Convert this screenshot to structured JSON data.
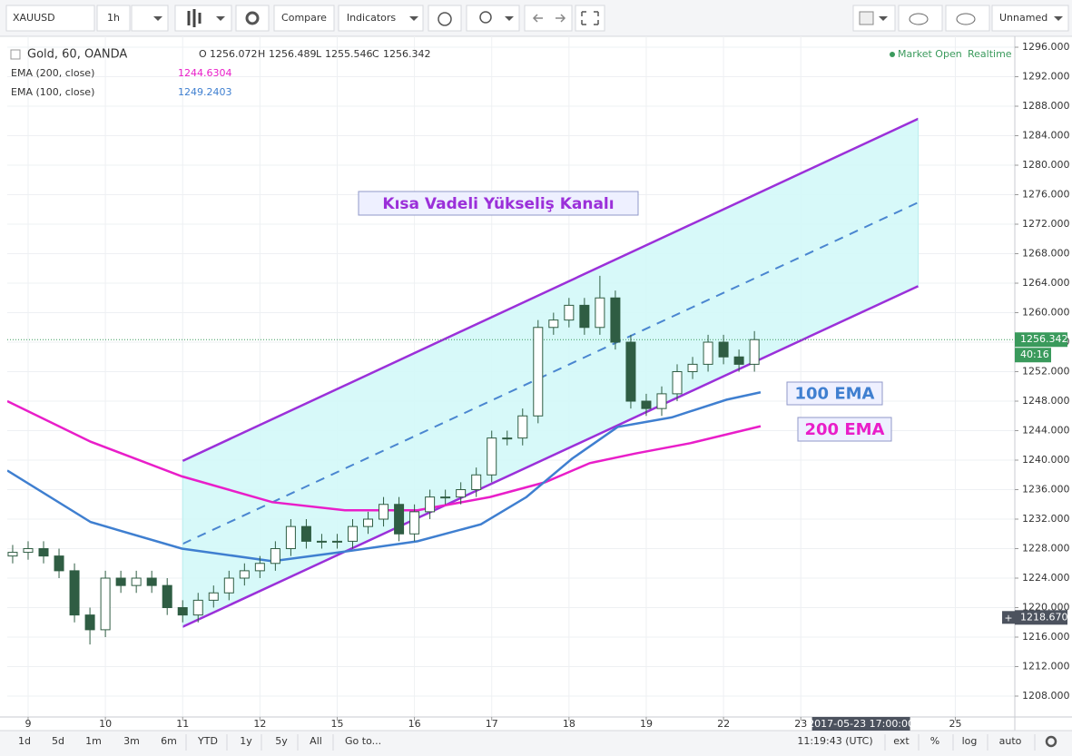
{
  "toolbar": {
    "symbol": "XAUUSD",
    "interval": "1h",
    "compare": "Compare",
    "indicators": "Indicators",
    "layout": "Unnamed"
  },
  "legend": {
    "title": "Gold, 60, OANDA",
    "o_label": "O",
    "open": 1256.072,
    "h_label": "H",
    "high": 1256.489,
    "l_label": "L",
    "low": 1255.546,
    "c_label": "C",
    "close": 1256.342,
    "status": "Market Open",
    "feed": "Realtime"
  },
  "bottom_bar": {
    "ranges": [
      "1d",
      "5d",
      "1m",
      "3m",
      "6m",
      "YTD",
      "1y",
      "5y",
      "All"
    ],
    "goto": "Go to...",
    "clock": "11:19:43 (UTC)",
    "options": [
      "ext",
      "%",
      "log",
      "auto"
    ]
  },
  "chart_data": {
    "type": "candlestick",
    "x": [
      -0.2,
      0,
      0.2,
      0.4,
      0.6,
      0.8,
      1,
      1.2,
      1.4,
      1.6,
      1.8,
      2,
      2.2,
      2.4,
      2.6,
      2.8,
      3,
      3.2,
      3.4,
      3.6,
      3.8,
      4,
      4.2,
      4.4,
      4.6,
      4.8,
      5,
      5.2,
      5.4,
      5.6,
      5.8,
      6,
      6.2,
      6.4,
      6.6,
      6.8,
      7,
      7.2,
      7.4,
      7.6,
      7.8,
      8,
      8.2,
      8.4,
      8.6,
      8.8,
      9,
      9.2,
      9.4
    ],
    "open": [
      1227,
      1227.5,
      1228,
      1227,
      1225,
      1219,
      1217,
      1224,
      1223,
      1224,
      1223,
      1220,
      1219,
      1221,
      1222,
      1224,
      1225,
      1226,
      1228,
      1231,
      1229,
      1229,
      1229,
      1231,
      1232,
      1234,
      1230,
      1233,
      1235,
      1235,
      1236,
      1238,
      1243,
      1243,
      1246,
      1258,
      1259,
      1261,
      1258,
      1262,
      1256,
      1248,
      1247,
      1249,
      1252,
      1253,
      1256,
      1254,
      1253
    ],
    "high": [
      1228.5,
      1229,
      1229,
      1228,
      1226,
      1220,
      1225,
      1225,
      1225,
      1225,
      1224,
      1221,
      1222,
      1223,
      1225,
      1226,
      1227,
      1229,
      1232,
      1232,
      1230,
      1230,
      1232,
      1233,
      1235,
      1235,
      1234,
      1236,
      1236,
      1237,
      1239,
      1244,
      1244,
      1247,
      1259,
      1260,
      1262,
      1262,
      1265,
      1263,
      1257,
      1249,
      1250,
      1253,
      1254,
      1257,
      1257,
      1255,
      1257.5
    ],
    "low": [
      1226,
      1226.5,
      1226,
      1224,
      1218,
      1215,
      1216,
      1222,
      1222,
      1222,
      1219,
      1218,
      1218,
      1220,
      1221,
      1223,
      1224,
      1225,
      1227,
      1228,
      1228,
      1228,
      1228,
      1230,
      1231,
      1229,
      1229,
      1232,
      1234,
      1234,
      1235,
      1237,
      1242,
      1242,
      1245,
      1257,
      1258,
      1257,
      1257,
      1255,
      1247,
      1246,
      1246,
      1248,
      1251,
      1252,
      1253,
      1252,
      1252
    ],
    "close": [
      1227.5,
      1228,
      1227,
      1225,
      1219,
      1217,
      1224,
      1223,
      1224,
      1223,
      1220,
      1219,
      1221,
      1222,
      1224,
      1225,
      1226,
      1228,
      1231,
      1229,
      1229,
      1229,
      1231,
      1232,
      1234,
      1230,
      1233,
      1235,
      1235,
      1236,
      1238,
      1243,
      1243,
      1246,
      1258,
      1259,
      1261,
      1258,
      1262,
      1256,
      1248,
      1247,
      1249,
      1252,
      1253,
      1256,
      1254,
      1253,
      1256.342
    ],
    "up_color": "#ffffff",
    "down_color": "#2f5d43",
    "wick_color": "#2f5d43",
    "series": [
      {
        "name": "EMA (200, close)",
        "color": "#e91ec9",
        "last": 1244.6304,
        "x": [
          -0.27,
          0.81,
          1.99,
          3.16,
          4.1,
          5.04,
          5.98,
          6.69,
          7.27,
          7.86,
          8.57,
          9.48
        ],
        "values": [
          1248,
          1242.5,
          1237.8,
          1234.3,
          1233.2,
          1233.2,
          1235,
          1237,
          1239.6,
          1240.9,
          1242.3,
          1244.6
        ]
      },
      {
        "name": "EMA (100, close)",
        "color": "#3f7fd0",
        "last": 1249.2403,
        "x": [
          -0.27,
          0.81,
          1.99,
          3.16,
          4.1,
          5.04,
          5.86,
          6.45,
          7.04,
          7.63,
          8.33,
          9.04,
          9.48
        ],
        "values": [
          1238.6,
          1231.6,
          1228,
          1226.3,
          1227.6,
          1229,
          1231.3,
          1235,
          1240.2,
          1244.5,
          1245.8,
          1248.2,
          1249.2
        ]
      }
    ],
    "channel": {
      "x": [
        2.0,
        11.52
      ],
      "upper": [
        1239.9,
        1286.3
      ],
      "middle": [
        1228.65,
        1274.95
      ],
      "lower": [
        1217.4,
        1263.6
      ],
      "color": "#9b30d9",
      "fill": "#d3f8f8"
    },
    "annotations": [
      {
        "text": "Kısa Vadeli Yükseliş Kanalı",
        "color": "#9b30d9"
      },
      {
        "text": "100 EMA",
        "color": "#3f7fd0"
      },
      {
        "text": "200 EMA",
        "color": "#e91ec9"
      }
    ],
    "last_price": 1256.342,
    "countdown": "40:16",
    "crosshair_price": {
      "value": 1218.67,
      "label": "1218.670"
    },
    "crosshair_time": {
      "value": 10.78,
      "label": "2017-05-23 17:00:00"
    },
    "xlim": [
      -0.27,
      12.77
    ],
    "xticks": [
      {
        "value": 0,
        "label": "9"
      },
      {
        "value": 1,
        "label": "10"
      },
      {
        "value": 2,
        "label": "11"
      },
      {
        "value": 3,
        "label": "12"
      },
      {
        "value": 4,
        "label": "15"
      },
      {
        "value": 5,
        "label": "16"
      },
      {
        "value": 6,
        "label": "17"
      },
      {
        "value": 7,
        "label": "18"
      },
      {
        "value": 8,
        "label": "19"
      },
      {
        "value": 9,
        "label": "22"
      },
      {
        "value": 10,
        "label": "23"
      },
      {
        "value": 12,
        "label": "25"
      }
    ],
    "ylim": [
      1205.17,
      1297.48
    ],
    "yticks": [
      {
        "value": 1208,
        "label": "1208.000"
      },
      {
        "value": 1212,
        "label": "1212.000"
      },
      {
        "value": 1216,
        "label": "1216.000"
      },
      {
        "value": 1220,
        "label": "1220.000"
      },
      {
        "value": 1224,
        "label": "1224.000"
      },
      {
        "value": 1228,
        "label": "1228.000"
      },
      {
        "value": 1232,
        "label": "1232.000"
      },
      {
        "value": 1236,
        "label": "1236.000"
      },
      {
        "value": 1240,
        "label": "1240.000"
      },
      {
        "value": 1244,
        "label": "1244.000"
      },
      {
        "value": 1248,
        "label": "1248.000"
      },
      {
        "value": 1252,
        "label": "1252.000"
      },
      {
        "value": 1256,
        "label": "1256.000"
      },
      {
        "value": 1260,
        "label": "1260.000"
      },
      {
        "value": 1264,
        "label": "1264.000"
      },
      {
        "value": 1268,
        "label": "1268.000"
      },
      {
        "value": 1272,
        "label": "1272.000"
      },
      {
        "value": 1276,
        "label": "1276.000"
      },
      {
        "value": 1280,
        "label": "1280.000"
      },
      {
        "value": 1284,
        "label": "1284.000"
      },
      {
        "value": 1288,
        "label": "1288.000"
      },
      {
        "value": 1292,
        "label": "1292.000"
      },
      {
        "value": 1296,
        "label": "1296.000"
      }
    ],
    "grid": true
  }
}
